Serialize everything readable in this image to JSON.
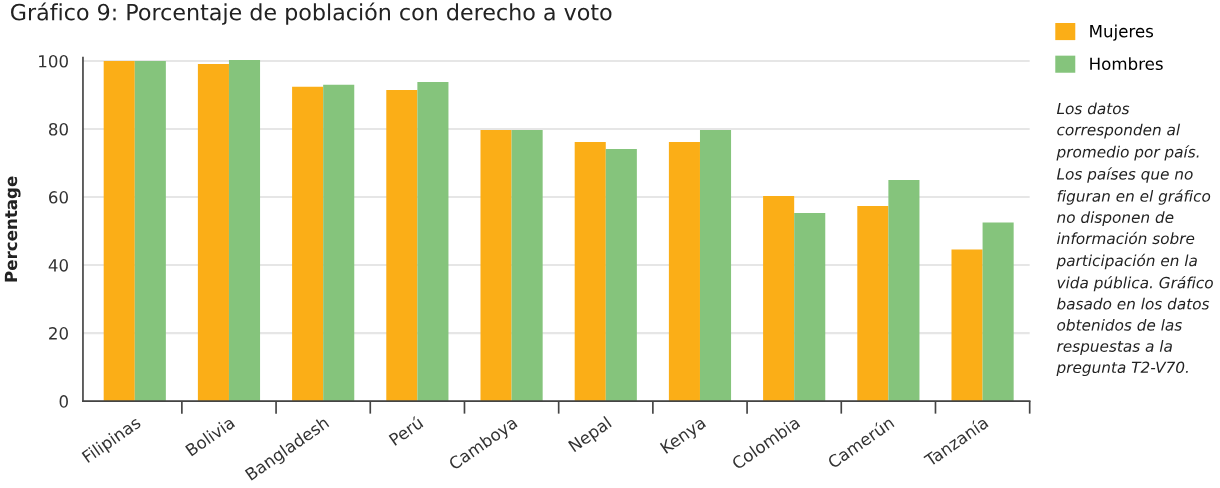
{
  "chart_data": {
    "type": "bar",
    "title": "Gráfico 9: Porcentaje de población con derecho a voto",
    "ylabel": "Percentage",
    "categories": [
      "Filipinas",
      "Bolivia",
      "Bangladesh",
      "Perú",
      "Camboya",
      "Nepal",
      "Kenya",
      "Colombia",
      "Camerún",
      "Tanzanía"
    ],
    "series": [
      {
        "name": "Mujeres",
        "color": "#fbae17",
        "values": [
          100,
          99.1,
          92.4,
          91.5,
          79.7,
          76.2,
          76.2,
          60.3,
          57.4,
          44.6
        ]
      },
      {
        "name": "Hombres",
        "color": "#85c47c",
        "values": [
          100,
          100.3,
          93.0,
          93.8,
          79.7,
          74.1,
          79.7,
          55.3,
          65.0,
          52.5
        ]
      }
    ],
    "ylim": [
      0,
      101
    ],
    "yticks": [
      0,
      20,
      40,
      60,
      80,
      100
    ],
    "grid": "y",
    "legend": "top right",
    "annotations": [
      "Los datos corresponden al promedio por país. Los países que no figuran en el gráfico no disponen de información sobre participación en la vida pública. Gráfico basado en los datos obtenidos de las respuestas a la pregunta T2-V70."
    ]
  }
}
